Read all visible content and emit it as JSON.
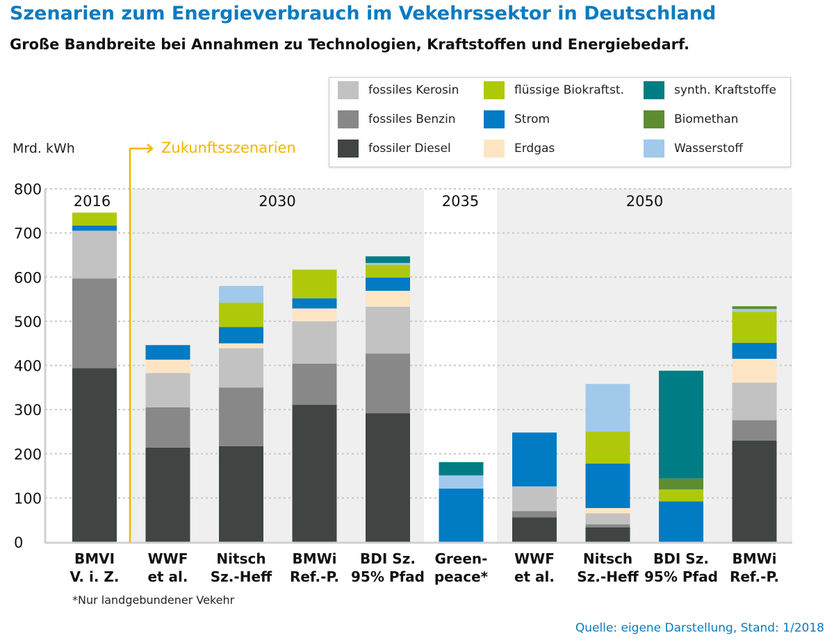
{
  "title": "Szenarien zum Energieverbrauch im Vekehrssektor in Deutschland",
  "subtitle": "Große Bandbreite bei Annahmen zu Technologien, Kraftstoffen und Energiebedarf.",
  "footnote": "*Nur landgebundener Vekehr",
  "source": "Quelle: eigene Darstellung, Stand: 1/2018",
  "chart_data": {
    "type": "bar",
    "stacked": true,
    "ylabel": "Mrd. kWh",
    "ylim": [
      0,
      800
    ],
    "yticks": [
      0,
      100,
      200,
      300,
      400,
      500,
      600,
      700,
      800
    ],
    "grid": true,
    "legend_position": "top-right",
    "annotation": "Zukunftsszenarien",
    "groups": [
      {
        "label": "2016",
        "categories": [
          0
        ]
      },
      {
        "label": "2030",
        "categories": [
          1,
          2,
          3,
          4
        ]
      },
      {
        "label": "2035",
        "categories": [
          5
        ]
      },
      {
        "label": "2050",
        "categories": [
          6,
          7,
          8,
          9
        ]
      }
    ],
    "categories": [
      [
        "BMVI",
        "V. i. Z."
      ],
      [
        "WWF",
        "et al."
      ],
      [
        "Nitsch",
        "Sz.-Heff"
      ],
      [
        "BMWi",
        "Ref.-P."
      ],
      [
        "BDI Sz.",
        "95% Pfad"
      ],
      [
        "Green-",
        "peace*"
      ],
      [
        "WWF",
        "et al."
      ],
      [
        "Nitsch",
        "Sz.-Heff"
      ],
      [
        "BDI Sz.",
        "95% Pfad"
      ],
      [
        "BMWi",
        "Ref.-P."
      ]
    ],
    "series": [
      {
        "name": "fossiler Diesel",
        "color": "#404544",
        "values": [
          394,
          214,
          217,
          311,
          292,
          0,
          56,
          33,
          0,
          230
        ]
      },
      {
        "name": "fossiles Benzin",
        "color": "#888888",
        "values": [
          203,
          91,
          133,
          93,
          135,
          0,
          14,
          7,
          0,
          46
        ]
      },
      {
        "name": "fossiles Kerosin",
        "color": "#c2c2c2",
        "values": [
          108,
          78,
          89,
          96,
          106,
          0,
          56,
          25,
          0,
          85
        ]
      },
      {
        "name": "Erdgas",
        "color": "#fde5c4",
        "values": [
          0,
          30,
          11,
          29,
          36,
          0,
          0,
          12,
          0,
          54
        ]
      },
      {
        "name": "Strom",
        "color": "#007bc4",
        "values": [
          12,
          33,
          37,
          23,
          30,
          121,
          122,
          101,
          92,
          36
        ]
      },
      {
        "name": "flüssige Biokraftst.",
        "color": "#afc90a",
        "values": [
          29,
          0,
          55,
          65,
          29,
          0,
          0,
          72,
          27,
          70
        ]
      },
      {
        "name": "Biomethan",
        "color": "#5e8c31",
        "values": [
          0,
          0,
          0,
          0,
          0,
          0,
          0,
          0,
          25,
          0
        ]
      },
      {
        "name": "Wasserstoff",
        "color": "#a1c9ec",
        "values": [
          0,
          0,
          38,
          0,
          4,
          30,
          0,
          108,
          0,
          7
        ]
      },
      {
        "name": "synth. Kraftstoffe",
        "color": "#007d84",
        "values": [
          0,
          0,
          0,
          0,
          15,
          30,
          0,
          0,
          244,
          0
        ]
      },
      {
        "name": "Biomethan top",
        "color": "#5e8c31",
        "values": [
          0,
          0,
          0,
          0,
          0,
          0,
          0,
          0,
          0,
          6
        ]
      }
    ],
    "legend": [
      {
        "name": "fossiles Kerosin",
        "color": "#c2c2c2"
      },
      {
        "name": "flüssige Biokraftst.",
        "color": "#afc90a"
      },
      {
        "name": "synth. Kraftstoffe",
        "color": "#007d84"
      },
      {
        "name": "fossiles Benzin",
        "color": "#888888"
      },
      {
        "name": "Strom",
        "color": "#007bc4"
      },
      {
        "name": "Biomethan",
        "color": "#5e8c31"
      },
      {
        "name": "fossiler Diesel",
        "color": "#404544"
      },
      {
        "name": "Erdgas",
        "color": "#fde5c4"
      },
      {
        "name": "Wasserstoff",
        "color": "#a1c9ec"
      }
    ]
  }
}
